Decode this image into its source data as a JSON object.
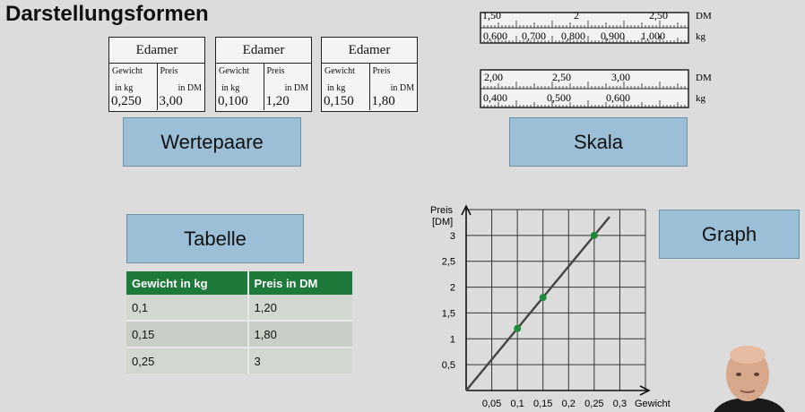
{
  "page": {
    "title": "Darstellungsformen"
  },
  "cards": {
    "wertepaare": "Wertepaare",
    "skala": "Skala",
    "tabelle": "Tabelle",
    "graph": "Graph"
  },
  "tags": [
    {
      "name": "Edamer",
      "weight_h1": "Gewicht",
      "weight_h2": "in kg",
      "weight": "0,250",
      "price_h1": "Preis",
      "price_h2": "in DM",
      "price": "3,00"
    },
    {
      "name": "Edamer",
      "weight_h1": "Gewicht",
      "weight_h2": "in kg",
      "weight": "0,100",
      "price_h1": "Preis",
      "price_h2": "in DM",
      "price": "1,20"
    },
    {
      "name": "Edamer",
      "weight_h1": "Gewicht",
      "weight_h2": "in kg",
      "weight": "0,150",
      "price_h1": "Preis",
      "price_h2": "in DM",
      "price": "1,80"
    }
  ],
  "scales": [
    {
      "dm_labels": [
        "1,50",
        "2",
        "2,50"
      ],
      "kg_labels": [
        "0,600",
        "0,700",
        "0,800",
        "0,900",
        "1,000"
      ],
      "dm_unit": "DM",
      "kg_unit": "kg"
    },
    {
      "dm_labels": [
        "2,00",
        "2,50",
        "3,00"
      ],
      "kg_labels": [
        "0,400",
        "0,500",
        "0,600"
      ],
      "dm_unit": "DM",
      "kg_unit": "kg"
    }
  ],
  "table": {
    "headers": [
      "Gewicht in kg",
      "Preis in DM"
    ],
    "rows": [
      [
        "0,1",
        "1,20"
      ],
      [
        "0,15",
        "1,80"
      ],
      [
        "0,25",
        "3"
      ]
    ]
  },
  "chart_data": {
    "type": "line",
    "ylabel_line1": "Preis",
    "ylabel_line2": "[DM]",
    "xlabel": "Gewicht",
    "x_ticks": [
      "0,05",
      "0,1",
      "0,15",
      "0,2",
      "0,25",
      "0,3"
    ],
    "y_ticks": [
      "0,5",
      "1",
      "1,5",
      "2",
      "2,5",
      "3"
    ],
    "xlim": [
      0,
      0.35
    ],
    "ylim": [
      0,
      3.5
    ],
    "grid": true,
    "line": {
      "x": [
        0,
        0.28
      ],
      "y": [
        0,
        3.36
      ]
    },
    "points": [
      {
        "x": 0.1,
        "y": 1.2
      },
      {
        "x": 0.15,
        "y": 1.8
      },
      {
        "x": 0.25,
        "y": 3
      }
    ],
    "line_color": "#444444",
    "point_color": "#1e8a3a"
  }
}
